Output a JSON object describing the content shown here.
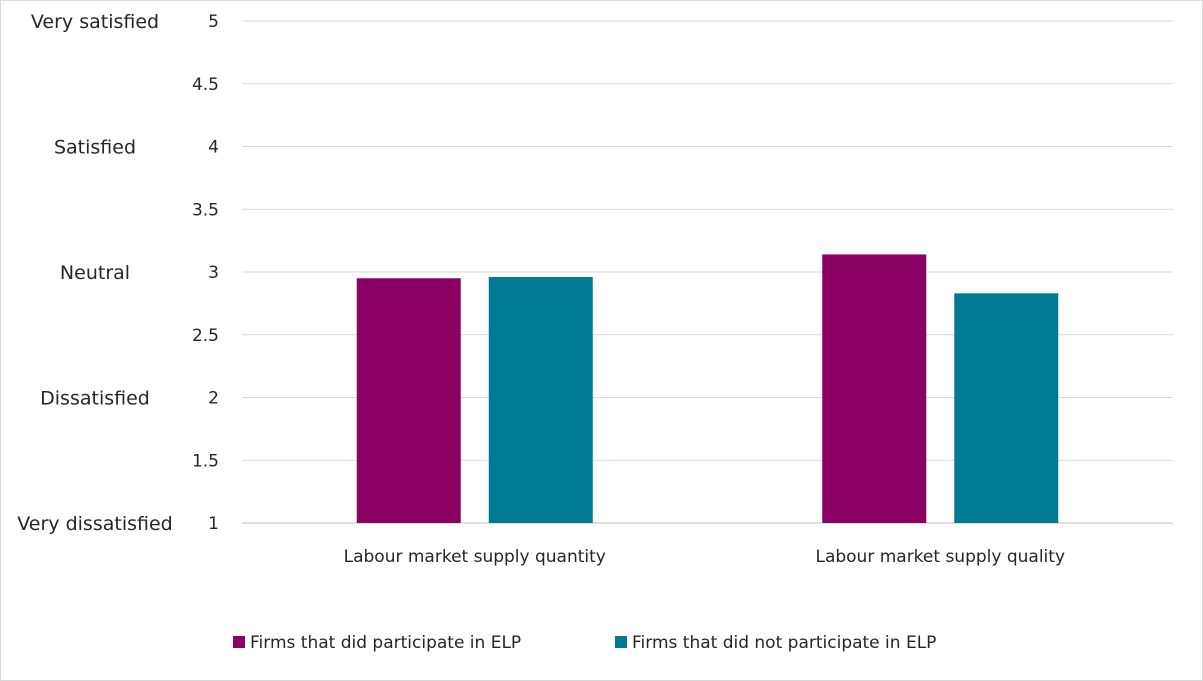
{
  "chart_data": {
    "type": "bar",
    "title": "",
    "categories": [
      "Labour market supply quantity",
      "Labour market supply quality"
    ],
    "series": [
      {
        "name": "Firms that did participate in ELP",
        "color": "#8b0063",
        "values": [
          2.95,
          3.14
        ]
      },
      {
        "name": "Firms that did not participate in ELP",
        "color": "#007a94",
        "values": [
          2.96,
          2.83
        ]
      }
    ],
    "ylim": [
      1,
      5
    ],
    "yticks": [
      "1",
      "1.5",
      "2",
      "2.5",
      "3",
      "3.5",
      "4",
      "4.5",
      "5"
    ],
    "scale_labels": [
      {
        "value": 5,
        "text": "Very satisfied"
      },
      {
        "value": 4,
        "text": "Satisfied"
      },
      {
        "value": 3,
        "text": "Neutral"
      },
      {
        "value": 2,
        "text": "Dissatisfied"
      },
      {
        "value": 1,
        "text": "Very dissatisfied"
      }
    ],
    "grid": true,
    "legend_position": "bottom"
  }
}
